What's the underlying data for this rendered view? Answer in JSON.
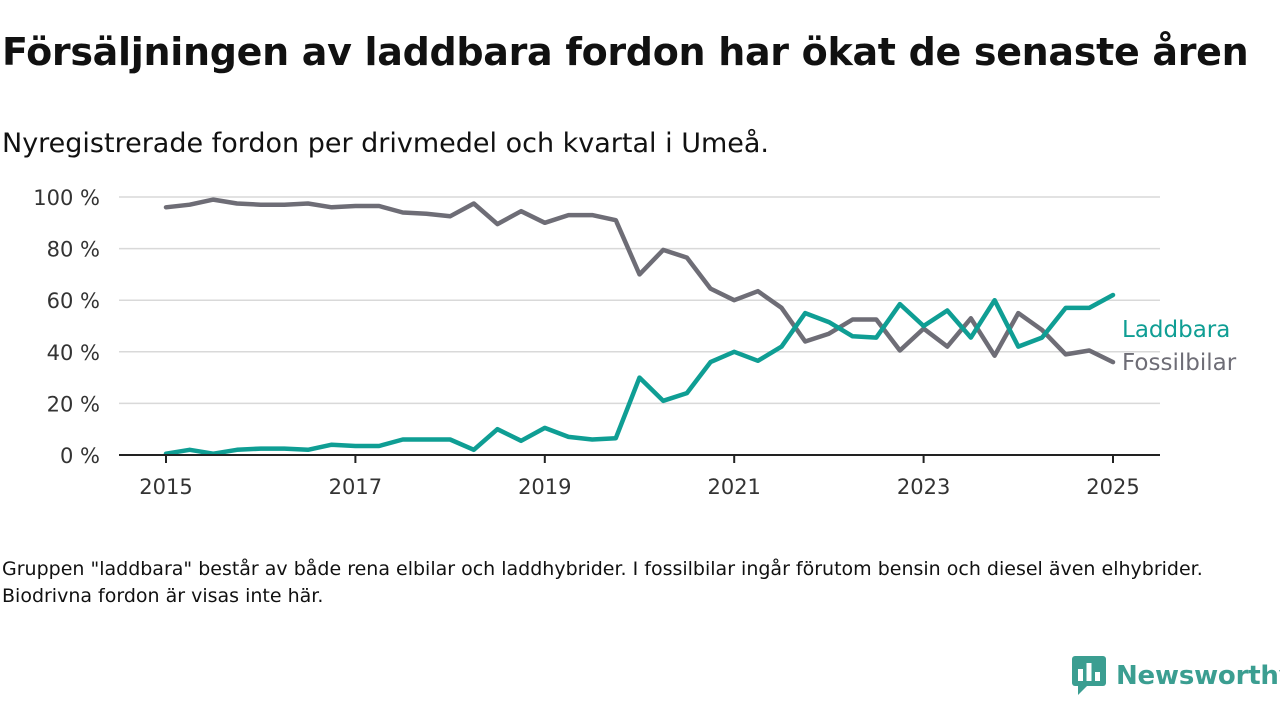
{
  "title": "Försäljningen av laddbara fordon har ökat de senaste åren",
  "subtitle": "Nyregistrerade fordon per drivmedel och kvartal i Umeå.",
  "footnote": "Gruppen \"laddbara\" består av både rena elbilar och laddhybrider. I fossilbilar ingår förutom bensin och diesel även elhybrider. Biodrivna fordon är visas inte här.",
  "brand": {
    "name": "Newsworthy",
    "color": "#3b9e91"
  },
  "chart_data": {
    "type": "line",
    "x": [
      2015.0,
      2015.25,
      2015.5,
      2015.75,
      2016.0,
      2016.25,
      2016.5,
      2016.75,
      2017.0,
      2017.25,
      2017.5,
      2017.75,
      2018.0,
      2018.25,
      2018.5,
      2018.75,
      2019.0,
      2019.25,
      2019.5,
      2019.75,
      2020.0,
      2020.25,
      2020.5,
      2020.75,
      2021.0,
      2021.25,
      2021.5,
      2021.75,
      2022.0,
      2022.25,
      2022.5,
      2022.75,
      2023.0,
      2023.25,
      2023.5,
      2023.75,
      2024.0,
      2024.25,
      2024.5,
      2024.75,
      2025.0
    ],
    "series": [
      {
        "name": "Laddbara",
        "color": "#0f9e94",
        "values": [
          0.5,
          2,
          0.5,
          2,
          2.5,
          2.5,
          2,
          4,
          3.5,
          3.5,
          6,
          6,
          6,
          2,
          10,
          5.5,
          10.5,
          7,
          6,
          6.5,
          30,
          21,
          24,
          36,
          40,
          36.5,
          42,
          55,
          51.5,
          46,
          45.5,
          58.5,
          50,
          56,
          45.5,
          60,
          42,
          45.5,
          57,
          57,
          62
        ]
      },
      {
        "name": "Fossilbilar",
        "color": "#6e6d76",
        "values": [
          96,
          97,
          99,
          97.5,
          97,
          97,
          97.5,
          96,
          96.5,
          96.5,
          94,
          93.5,
          92.5,
          97.5,
          89.5,
          94.5,
          90,
          93,
          93,
          91,
          70,
          79.5,
          76.5,
          64.5,
          60,
          63.5,
          57,
          44,
          47,
          52.5,
          52.5,
          40.5,
          49,
          42,
          53,
          38.5,
          55,
          48.5,
          39,
          40.5,
          36
        ]
      }
    ],
    "xticks": [
      2015,
      2017,
      2019,
      2021,
      2023,
      2025
    ],
    "xtick_labels": [
      "2015",
      "2017",
      "2019",
      "2021",
      "2023",
      "2025"
    ],
    "yticks": [
      0,
      20,
      40,
      60,
      80,
      100
    ],
    "ytick_labels": [
      "0 %",
      "20 %",
      "40 %",
      "60 %",
      "80 %",
      "100 %"
    ],
    "ylim": [
      0,
      100
    ],
    "grid": true,
    "legend": "right-end labels"
  }
}
